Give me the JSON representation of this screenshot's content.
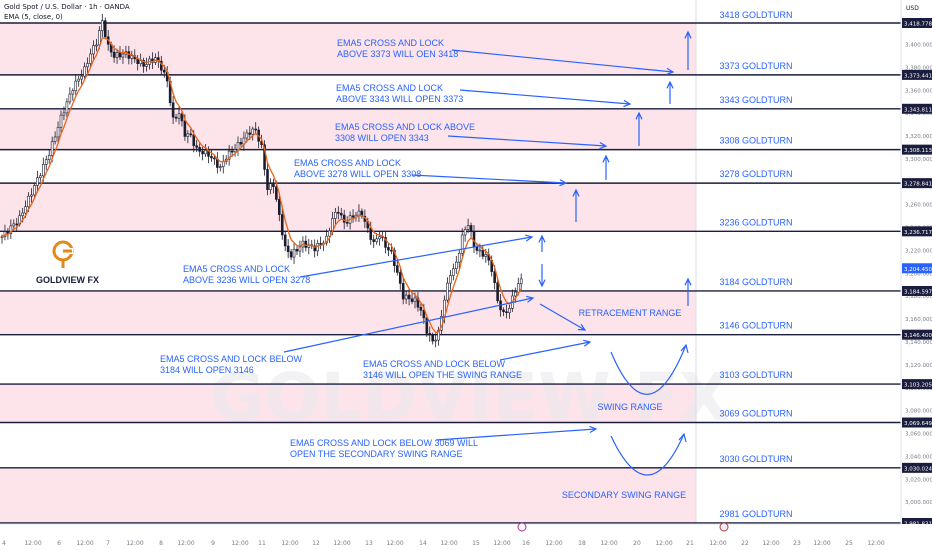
{
  "header": {
    "symbol": "Gold Spot / U.S. Dollar · 1h · OANDA",
    "indicator": "EMA (5, close, 0)",
    "currency": "USD"
  },
  "chart_data": {
    "type": "candlestick",
    "ylim": [
      2975,
      3428
    ],
    "price_ticks": [
      3000,
      3020,
      3040,
      3060,
      3080,
      3100,
      3120,
      3140,
      3160,
      3180,
      3200,
      3220,
      3240,
      3260,
      3280,
      3300,
      3320,
      3340,
      3360,
      3380,
      3400
    ],
    "x_ticks": [
      "4",
      "12:00",
      "6",
      "12:00",
      "7",
      "12:00",
      "8",
      "12:00",
      "9",
      "12:00",
      "11",
      "12:00",
      "12",
      "12:00",
      "13",
      "12:00",
      "14",
      "12:00",
      "15",
      "12:00",
      "16",
      "12:00",
      "18",
      "12:00",
      "20",
      "12:00",
      "21",
      "12:00",
      "22",
      "12:00",
      "23",
      "12:00",
      "25",
      "12:00",
      "27",
      "12:00"
    ],
    "close_path": [
      [
        0,
        3232
      ],
      [
        3,
        3248
      ],
      [
        6,
        3282
      ],
      [
        8,
        3305
      ],
      [
        10,
        3336
      ],
      [
        12,
        3362
      ],
      [
        14,
        3378
      ],
      [
        15,
        3392
      ],
      [
        16,
        3402
      ],
      [
        17,
        3420
      ],
      [
        18,
        3398
      ],
      [
        19,
        3390
      ],
      [
        21,
        3392
      ],
      [
        24,
        3382
      ],
      [
        26,
        3388
      ],
      [
        27,
        3380
      ],
      [
        28,
        3368
      ],
      [
        29,
        3334
      ],
      [
        30,
        3340
      ],
      [
        31,
        3322
      ],
      [
        32,
        3320
      ],
      [
        33,
        3308
      ],
      [
        35,
        3304
      ],
      [
        37,
        3292
      ],
      [
        38,
        3302
      ],
      [
        40,
        3312
      ],
      [
        42,
        3324
      ],
      [
        43,
        3325
      ],
      [
        44,
        3310
      ],
      [
        45,
        3274
      ],
      [
        46,
        3278
      ],
      [
        47,
        3250
      ],
      [
        48,
        3222
      ],
      [
        49,
        3216
      ],
      [
        51,
        3226
      ],
      [
        53,
        3222
      ],
      [
        55,
        3230
      ],
      [
        56,
        3248
      ],
      [
        57,
        3255
      ],
      [
        58,
        3244
      ],
      [
        60,
        3252
      ],
      [
        61,
        3252
      ],
      [
        62,
        3238
      ],
      [
        63,
        3226
      ],
      [
        64,
        3234
      ],
      [
        65,
        3224
      ],
      [
        66,
        3218
      ],
      [
        67,
        3200
      ],
      [
        68,
        3180
      ],
      [
        70,
        3176
      ],
      [
        71,
        3168
      ],
      [
        72,
        3150
      ],
      [
        73,
        3140
      ],
      [
        74,
        3148
      ],
      [
        75,
        3178
      ],
      [
        76,
        3200
      ],
      [
        77,
        3208
      ],
      [
        78,
        3232
      ],
      [
        79,
        3244
      ],
      [
        80,
        3224
      ],
      [
        81,
        3218
      ],
      [
        82,
        3216
      ],
      [
        83,
        3204
      ],
      [
        84,
        3176
      ],
      [
        85,
        3164
      ],
      [
        86,
        3170
      ],
      [
        87,
        3186
      ],
      [
        88,
        3194
      ]
    ],
    "ema_label": "EMA5",
    "levels": [
      {
        "price": 3418.778,
        "label": "3418 GOLDTURN",
        "price_label": "3,418.778"
      },
      {
        "price": 3373.441,
        "label": "3373 GOLDTURN",
        "price_label": "3,373.441"
      },
      {
        "price": 3343.811,
        "label": "3343 GOLDTURN",
        "price_label": "3,343.811"
      },
      {
        "price": 3308.113,
        "label": "3308 GOLDTURN",
        "price_label": "3,308.113"
      },
      {
        "price": 3278.841,
        "label": "3278 GOLDTURN",
        "price_label": "3,278.841"
      },
      {
        "price": 3236.717,
        "label": "3236 GOLDTURN",
        "price_label": "3,236.717"
      },
      {
        "price": 3184.597,
        "label": "3184 GOLDTURN",
        "price_label": "3,184.597"
      },
      {
        "price": 3146.4,
        "label": "3146 GOLDTURN",
        "price_label": "3,146.400"
      },
      {
        "price": 3103.205,
        "label": "3103 GOLDTURN",
        "price_label": "3,103.205"
      },
      {
        "price": 3069.649,
        "label": "3069 GOLDTURN",
        "price_label": "3,069.649"
      },
      {
        "price": 3030.024,
        "label": "3030 GOLDTURN",
        "price_label": "3,030.024"
      },
      {
        "price": 2981.831,
        "label": "2981 GOLDTURN",
        "price_label": "2,981.831"
      }
    ],
    "current_price": {
      "price": 3204.45,
      "label": "3,204.450"
    },
    "shaded_zones": [
      [
        3373.441,
        3418.778
      ],
      [
        3308.113,
        3343.811
      ],
      [
        3236.717,
        3278.841
      ],
      [
        3146.4,
        3184.597
      ],
      [
        3069.649,
        3103.205
      ],
      [
        2981.831,
        3030.024
      ]
    ],
    "annotations": [
      [
        "EMA5 CROSS AND LOCK",
        "ABOVE 3373 WILL OEN 3418"
      ],
      [
        "EMA5 CROSS AND LOCK",
        "ABOVE 3343 WILL OPEN 3373"
      ],
      [
        "EMA5 CROSS AND LOCK ABOVE",
        "3308 WILL OPEN 3343"
      ],
      [
        "EMA5 CROSS AND LOCK",
        "ABOVE 3278 WILL OPEN 3308"
      ],
      [
        "EMA5 CROSS AND LOCK",
        "ABOVE 3236 WILL OPEN 3278"
      ],
      [
        "EMA5 CROSS AND LOCK BELOW",
        "3184 WILL OPEN 3146"
      ],
      [
        "EMA5 CROSS AND LOCK BELOW",
        "3146 WILL OPEN THE SWING RANGE"
      ],
      [
        "EMA5 CROSS AND LOCK BELOW 3069 WILL",
        "OPEN THE SECONDARY SWING RANGE"
      ]
    ],
    "zone_labels": [
      "RETRACEMENT RANGE",
      "SWING RANGE",
      "SECONDARY SWING RANGE"
    ],
    "brand": "GOLDVIEW FX",
    "watermark": "GOLDVIEW FX",
    "colors": {
      "zone": "#fde3ea",
      "line": "#1a1d3d",
      "annotation": "#2962ff",
      "candle_up": "#1b1d2e",
      "ema": "#e8651b",
      "brand_logo": "#e08a1e",
      "current_price_bg": "#2962ff"
    }
  }
}
